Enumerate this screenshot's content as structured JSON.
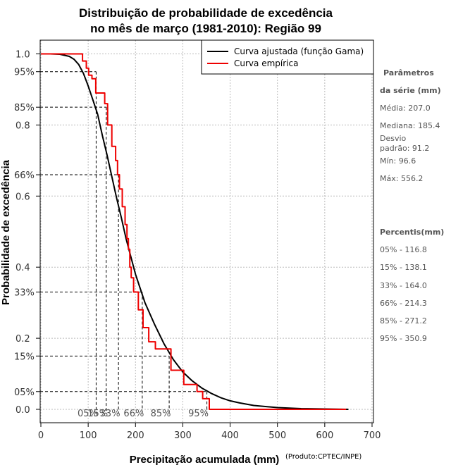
{
  "chart_data": {
    "type": "line",
    "title_line1": "Distribuição de probabilidade de excedência",
    "title_line2": "no mês de março (1981-2010): Região 99",
    "xlabel": "Precipitação acumulada (mm)",
    "ylabel": "Probabilidade de excedência",
    "credit": "(Produto:CPTEC/INPE)",
    "xlim": [
      -2,
      705
    ],
    "ylim": [
      -0.05,
      1.05
    ],
    "x_ticks": [
      0,
      100,
      200,
      300,
      400,
      500,
      600,
      700
    ],
    "x_tick_labels": [
      "0",
      "100",
      "200",
      "300",
      "400",
      "500",
      "600",
      "700"
    ],
    "y_ticks": [
      0.0,
      0.2,
      0.4,
      0.6,
      0.8,
      1.0
    ],
    "y_tick_labels": [
      "0.0",
      "0.2",
      "0.4",
      "0.6",
      "0.8",
      "1.0"
    ],
    "pct_y_ticks": [
      0.05,
      0.15,
      0.33,
      0.66,
      0.85,
      0.95
    ],
    "pct_y_labels": [
      "05%",
      "15%",
      "33%",
      "66%",
      "85%",
      "95%"
    ],
    "legend": {
      "position": "top-right",
      "entries": [
        {
          "label": "Curva ajustada (função Gama)",
          "color": "#000000"
        },
        {
          "label": "Curva empírica",
          "color": "#ee0000"
        }
      ]
    },
    "series": [
      {
        "name": "Curva ajustada (função Gama)",
        "color": "#000000",
        "x": [
          0,
          20,
          40,
          60,
          70,
          80,
          90,
          100,
          110,
          120,
          130,
          140,
          150,
          160,
          170,
          180,
          190,
          200,
          210,
          220,
          240,
          260,
          280,
          300,
          320,
          340,
          360,
          380,
          400,
          420,
          450,
          500,
          550,
          600,
          650
        ],
        "y": [
          1.0,
          1.0,
          0.999,
          0.993,
          0.985,
          0.97,
          0.945,
          0.91,
          0.87,
          0.83,
          0.77,
          0.715,
          0.655,
          0.595,
          0.54,
          0.48,
          0.43,
          0.38,
          0.34,
          0.3,
          0.24,
          0.185,
          0.14,
          0.105,
          0.08,
          0.06,
          0.045,
          0.033,
          0.024,
          0.018,
          0.011,
          0.005,
          0.002,
          0.001,
          0.0
        ]
      },
      {
        "name": "Curva empírica",
        "color": "#ee0000",
        "x": [
          0,
          88,
          88,
          96,
          96,
          101,
          101,
          108,
          108,
          116,
          116,
          135,
          135,
          141,
          141,
          150,
          150,
          158,
          158,
          162,
          162,
          166,
          166,
          172,
          172,
          178,
          178,
          182,
          182,
          185,
          185,
          188,
          188,
          191,
          191,
          196,
          196,
          206,
          206,
          216,
          216,
          228,
          228,
          242,
          242,
          275,
          275,
          302,
          302,
          330,
          330,
          342,
          342,
          356,
          356,
          556,
          556,
          645
        ],
        "y": [
          1.0,
          1.0,
          0.98,
          0.98,
          0.96,
          0.96,
          0.94,
          0.94,
          0.93,
          0.93,
          0.89,
          0.89,
          0.86,
          0.86,
          0.8,
          0.8,
          0.74,
          0.74,
          0.7,
          0.7,
          0.66,
          0.66,
          0.62,
          0.62,
          0.57,
          0.57,
          0.52,
          0.52,
          0.48,
          0.48,
          0.45,
          0.45,
          0.4,
          0.4,
          0.37,
          0.37,
          0.33,
          0.33,
          0.28,
          0.28,
          0.23,
          0.23,
          0.19,
          0.19,
          0.17,
          0.17,
          0.11,
          0.11,
          0.07,
          0.07,
          0.05,
          0.05,
          0.03,
          0.03,
          0.0,
          0.0,
          0.0,
          0.0
        ]
      }
    ],
    "percentiles": [
      {
        "label": "05%",
        "p": 0.05,
        "x": 350.9
      },
      {
        "label": "15%",
        "p": 0.15,
        "x": 271.2
      },
      {
        "label": "33%",
        "p": 0.33,
        "x": 214.3
      },
      {
        "label": "66%",
        "p": 0.66,
        "x": 164.0
      },
      {
        "label": "85%",
        "p": 0.85,
        "x": 138.1
      },
      {
        "label": "95%",
        "p": 0.95,
        "x": 116.8
      }
    ],
    "bottom_percent_labels": [
      "05%",
      "15%",
      "33%",
      "66%",
      "85%",
      "95%"
    ],
    "sidebar": {
      "params_header1": "Parâmetros",
      "params_header2": "da série (mm)",
      "media": "Média: 207.0",
      "mediana": "Mediana: 185.4",
      "desvio1": "Desvio",
      "desvio2": "padrão: 91.2",
      "min": "Mín: 96.6",
      "max": "Máx: 556.2",
      "percentis_header": "Percentis(mm)",
      "p05": "05% - 116.8",
      "p15": "15% - 138.1",
      "p33": "33% - 164.0",
      "p66": "66% - 214.3",
      "p85": "85% - 271.2",
      "p95": "95% - 350.9"
    }
  }
}
